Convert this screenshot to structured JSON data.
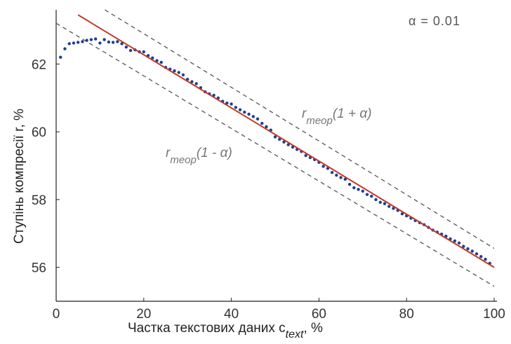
{
  "chart_data": {
    "type": "scatter",
    "title": "",
    "xlabel_main": "Частка текстових даних c",
    "xlabel_sub": "text",
    "xlabel_tail": ", %",
    "ylabel_main": "Ступінь компресії r",
    "ylabel_tail": ", %",
    "xlim": [
      0,
      100
    ],
    "ylim": [
      55,
      63.6
    ],
    "xticks": [
      0,
      20,
      40,
      60,
      80,
      100
    ],
    "yticks": [
      56,
      58,
      60,
      62
    ],
    "grid": false,
    "alpha_text": "α = 0.01",
    "upper_label_main": "r",
    "upper_label_sub": "теор",
    "upper_label_tail": "(1 + α)",
    "lower_label_main": "r",
    "lower_label_sub": "теор",
    "lower_label_tail": "(1 - α)",
    "theory_line": {
      "x": [
        5,
        100
      ],
      "y": [
        63.45,
        56.0
      ],
      "color": "#c0392b"
    },
    "alpha": 0.01,
    "series": [
      {
        "color": "#1f3f8f",
        "x": [
          1,
          2,
          3,
          4,
          5,
          6,
          7,
          8,
          9,
          10,
          11,
          12,
          13,
          14,
          15,
          16,
          17,
          18,
          19,
          20,
          21,
          22,
          23,
          24,
          25,
          26,
          27,
          28,
          29,
          30,
          31,
          32,
          33,
          34,
          35,
          36,
          37,
          38,
          39,
          40,
          41,
          42,
          43,
          44,
          45,
          46,
          47,
          48,
          49,
          50,
          51,
          52,
          53,
          54,
          55,
          56,
          57,
          58,
          59,
          60,
          61,
          62,
          63,
          64,
          65,
          66,
          67,
          68,
          69,
          70,
          71,
          72,
          73,
          74,
          75,
          76,
          77,
          78,
          79,
          80,
          81,
          82,
          83,
          84,
          85,
          86,
          87,
          88,
          89,
          90,
          91,
          92,
          93,
          94,
          95,
          96,
          97,
          98,
          99
        ],
        "y": [
          62.2,
          62.45,
          62.6,
          62.62,
          62.64,
          62.66,
          62.7,
          62.72,
          62.74,
          62.62,
          62.72,
          62.65,
          62.64,
          62.66,
          62.6,
          62.5,
          62.4,
          62.42,
          62.36,
          62.36,
          62.25,
          62.18,
          62.1,
          62.05,
          61.9,
          61.85,
          61.8,
          61.75,
          61.68,
          61.55,
          61.48,
          61.42,
          61.3,
          61.18,
          61.12,
          61.08,
          61.0,
          60.9,
          60.85,
          60.82,
          60.72,
          60.65,
          60.58,
          60.52,
          60.45,
          60.38,
          60.25,
          60.15,
          60.05,
          59.85,
          59.78,
          59.7,
          59.62,
          59.55,
          59.48,
          59.42,
          59.3,
          59.24,
          59.18,
          59.1,
          58.98,
          58.92,
          58.8,
          58.72,
          58.65,
          58.6,
          58.45,
          58.35,
          58.3,
          58.25,
          58.15,
          58.1,
          58.0,
          57.92,
          57.88,
          57.8,
          57.74,
          57.68,
          57.58,
          57.52,
          57.45,
          57.38,
          57.32,
          57.26,
          57.18,
          57.1,
          57.04,
          56.98,
          56.92,
          56.84,
          56.78,
          56.72,
          56.62,
          56.55,
          56.48,
          56.4,
          56.32,
          56.24,
          56.12
        ]
      }
    ]
  }
}
